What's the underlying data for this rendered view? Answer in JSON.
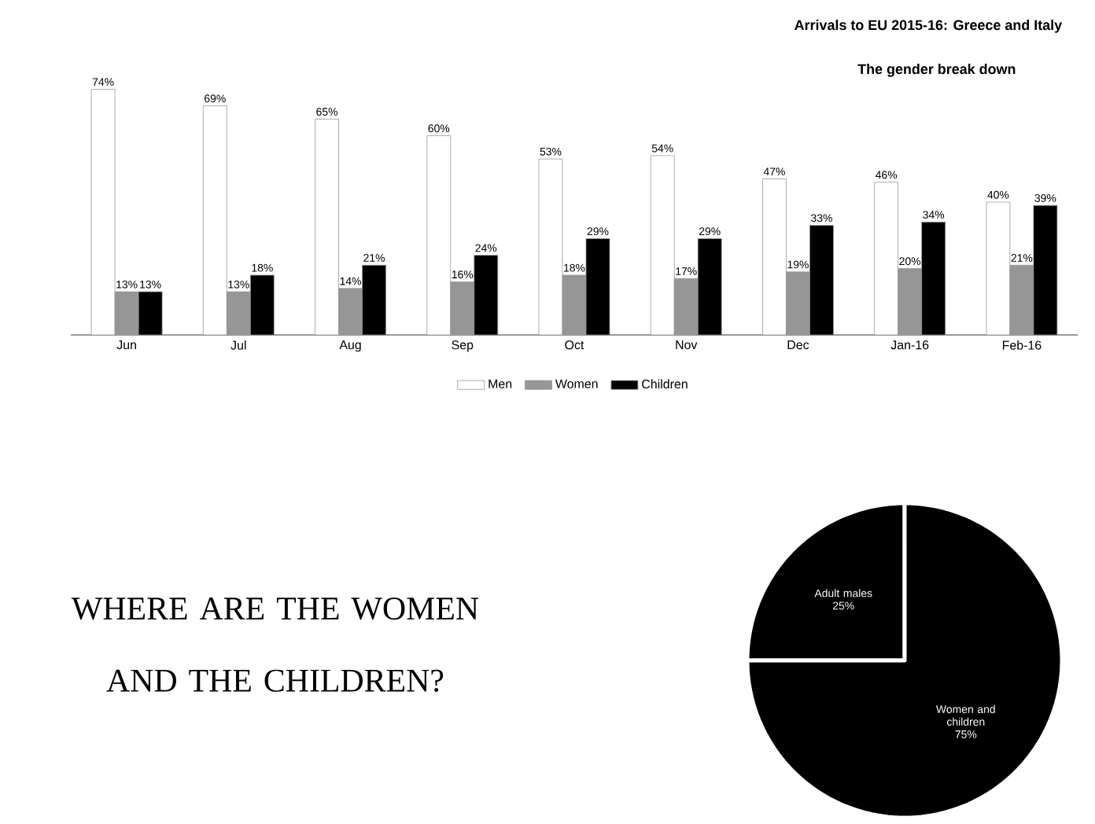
{
  "chart_data": [
    {
      "type": "bar",
      "title": "Arrivals to EU 2015-16: Greece and Italy",
      "subtitle": "The gender break down",
      "categories": [
        "Jun",
        "Jul",
        "Aug",
        "Sep",
        "Oct",
        "Nov",
        "Dec",
        "Jan-16",
        "Feb-16"
      ],
      "series": [
        {
          "name": "Men",
          "color": "#ffffff",
          "values": [
            74,
            69,
            65,
            60,
            53,
            54,
            47,
            46,
            40
          ],
          "value_labels": [
            "74%",
            "69%",
            "65%",
            "60%",
            "53%",
            "54%",
            "47%",
            "46%",
            "40%"
          ]
        },
        {
          "name": "Women",
          "color": "#969696",
          "values": [
            13,
            13,
            14,
            16,
            18,
            17,
            19,
            20,
            21
          ],
          "value_labels": [
            "13%",
            "13%",
            "14%",
            "16%",
            "18%",
            "17%",
            "19%",
            "20%",
            "21%"
          ]
        },
        {
          "name": "Children",
          "color": "#000000",
          "values": [
            13,
            18,
            21,
            24,
            29,
            29,
            33,
            34,
            39
          ],
          "value_labels": [
            "13%",
            "18%",
            "21%",
            "24%",
            "29%",
            "29%",
            "33%",
            "34%",
            "39%"
          ]
        }
      ],
      "legend": "bottom"
    },
    {
      "type": "pie",
      "categories": [
        "Adult males",
        "Women and children"
      ],
      "values": [
        25,
        75
      ],
      "colors": [
        "#000000",
        "#000000"
      ],
      "value_labels": [
        "25%",
        "75%"
      ],
      "annotations": [
        "WHERE ARE THE WOMEN AND THE CHILDREN?"
      ]
    }
  ]
}
